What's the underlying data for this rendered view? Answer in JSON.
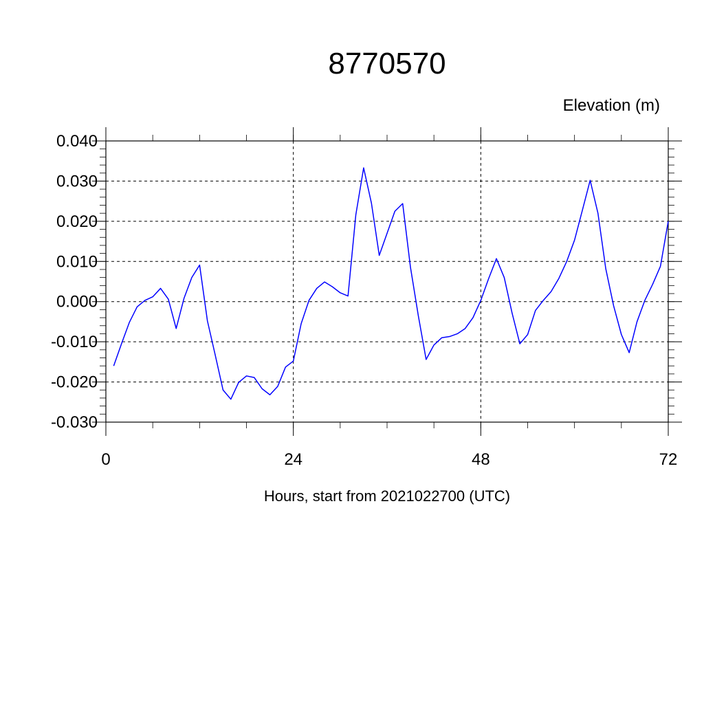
{
  "chart_data": {
    "type": "line",
    "title": "8770570",
    "ylabel": "Elevation (m)",
    "xlabel": "Hours, start from 2021022700 (UTC)",
    "xlim": [
      0,
      72
    ],
    "ylim": [
      -0.03,
      0.04
    ],
    "xticks": [
      0,
      24,
      48,
      72
    ],
    "xtick_labels": [
      "0",
      "24",
      "48",
      "72"
    ],
    "yticks": [
      -0.03,
      -0.02,
      -0.01,
      0.0,
      0.01,
      0.02,
      0.03,
      0.04
    ],
    "ytick_labels": [
      "-0.030",
      "-0.020",
      "-0.010",
      "0.000",
      "0.010",
      "0.020",
      "0.030",
      "0.040"
    ],
    "grid": true,
    "line_color": "#0000ff",
    "series": [
      {
        "x": [
          1,
          2,
          3,
          4,
          5,
          6,
          7,
          8,
          9,
          10,
          11,
          12,
          13,
          14,
          15,
          16,
          17,
          18,
          19,
          20,
          21,
          22,
          23,
          24,
          25,
          26,
          27,
          28,
          29,
          30,
          31,
          32,
          33,
          34,
          35,
          36,
          37,
          38,
          39,
          40,
          41,
          42,
          43,
          44,
          45,
          46,
          47,
          48,
          49,
          50,
          51,
          52,
          53,
          54,
          55,
          56,
          57,
          58,
          59,
          60,
          61,
          62,
          63,
          64,
          65,
          66,
          67,
          68,
          69,
          70,
          71,
          72
        ],
        "y": [
          -0.016,
          -0.0105,
          -0.0052,
          -0.0013,
          0.0003,
          0.0012,
          0.0033,
          0.0006,
          -0.0067,
          0.0008,
          0.006,
          0.0091,
          -0.0048,
          -0.0133,
          -0.022,
          -0.0243,
          -0.0201,
          -0.0185,
          -0.0189,
          -0.0217,
          -0.0232,
          -0.0211,
          -0.0163,
          -0.0148,
          -0.0055,
          0.0003,
          0.0033,
          0.0049,
          0.0037,
          0.0022,
          0.0014,
          0.0216,
          0.0333,
          0.0245,
          0.0115,
          0.017,
          0.0225,
          0.0244,
          0.0085,
          -0.0035,
          -0.0144,
          -0.0108,
          -0.009,
          -0.0087,
          -0.008,
          -0.0067,
          -0.004,
          0.0003,
          0.0057,
          0.0107,
          0.006,
          -0.0028,
          -0.0105,
          -0.0082,
          -0.0022,
          0.0003,
          0.0025,
          0.0058,
          0.01,
          0.0153,
          0.0227,
          0.0302,
          0.022,
          0.0082,
          -0.001,
          -0.0082,
          -0.0127,
          -0.005,
          0.0003,
          0.0043,
          0.0088,
          0.02
        ]
      }
    ]
  }
}
